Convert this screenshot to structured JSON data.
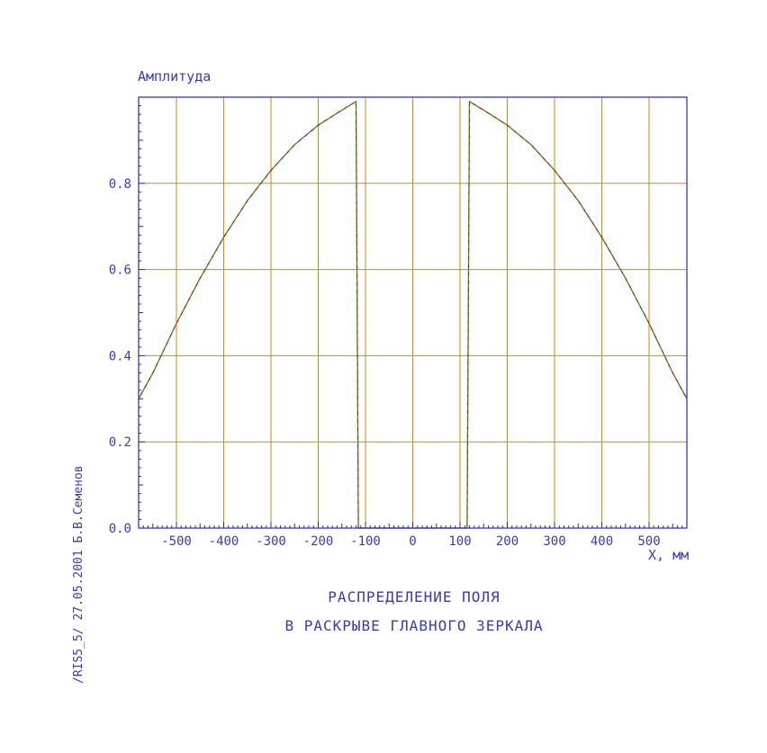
{
  "chart_data": {
    "type": "line",
    "ylabel": "Амплитуда",
    "xlabel": "X, мм",
    "xlim": [
      -580,
      580
    ],
    "ylim": [
      0,
      1.0
    ],
    "xticks": [
      -500,
      -400,
      -300,
      -200,
      -100,
      0,
      100,
      200,
      300,
      400,
      500
    ],
    "yticks": [
      0.0,
      0.2,
      0.4,
      0.6,
      0.8
    ],
    "ytick_labels": [
      "0.0",
      "0.2",
      "0.4",
      "0.6",
      "0.8"
    ],
    "grid": true,
    "title_lines": [
      "РАСПРЕДЕЛЕНИЕ ПОЛЯ",
      "В РАСКРЫВЕ ГЛАВНОГО ЗЕРКАЛА"
    ],
    "series": [
      {
        "color": "#cc0000",
        "x": [
          -580,
          -550,
          -500,
          -450,
          -400,
          -350,
          -300,
          -250,
          -200,
          -150,
          -120,
          -115,
          -110,
          -105,
          105,
          110,
          115,
          120,
          150,
          200,
          250,
          300,
          350,
          400,
          450,
          500,
          550,
          580
        ],
        "y": [
          0.3,
          0.36,
          0.475,
          0.58,
          0.675,
          0.76,
          0.83,
          0.89,
          0.935,
          0.97,
          0.99,
          0.0,
          0.0,
          0.0,
          0.0,
          0.0,
          0.0,
          0.99,
          0.97,
          0.935,
          0.89,
          0.83,
          0.76,
          0.675,
          0.58,
          0.475,
          0.36,
          0.3
        ]
      },
      {
        "color": "#22aa22",
        "x": [
          -580,
          -550,
          -500,
          -450,
          -400,
          -350,
          -300,
          -250,
          -200,
          -150,
          -120,
          -115,
          -110,
          -105,
          105,
          110,
          115,
          120,
          150,
          200,
          250,
          300,
          350,
          400,
          450,
          500,
          550,
          580
        ],
        "y": [
          0.3,
          0.36,
          0.475,
          0.58,
          0.675,
          0.76,
          0.83,
          0.89,
          0.935,
          0.97,
          0.99,
          0.0,
          0.0,
          0.0,
          0.0,
          0.0,
          0.0,
          0.99,
          0.97,
          0.935,
          0.89,
          0.83,
          0.76,
          0.675,
          0.58,
          0.475,
          0.36,
          0.3
        ]
      }
    ]
  },
  "side_text": "/RIS5_5/   27.05.2001   Б.В.Семенов",
  "colors": {
    "axis": "#2a2ab0",
    "grid": "#d08a10",
    "text": "#3b3bb0",
    "background": "#ffffff"
  }
}
